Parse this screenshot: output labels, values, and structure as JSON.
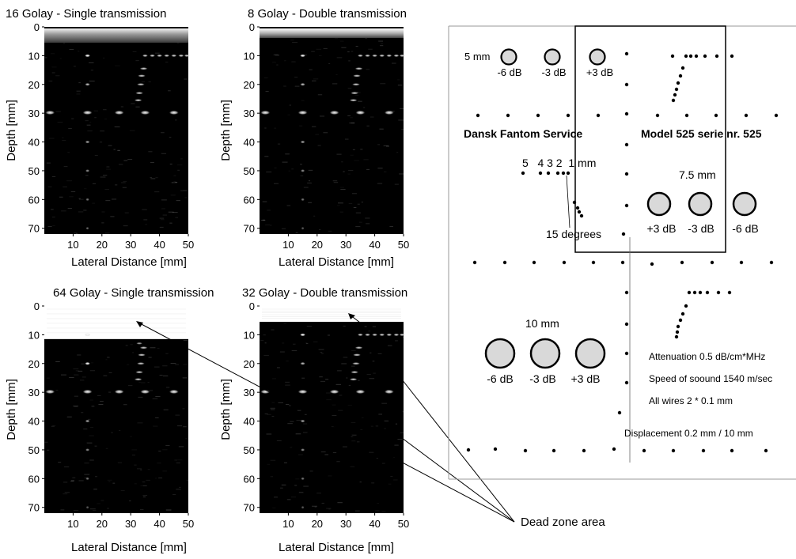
{
  "panels": [
    {
      "title": "16 Golay - Single transmission",
      "ylabel": "Depth [mm]",
      "xlabel": "Lateral Distance [mm]",
      "yticks": [
        "0",
        "10",
        "20",
        "30",
        "40",
        "50",
        "60",
        "70"
      ],
      "xticks": [
        "10",
        "20",
        "30",
        "40",
        "50"
      ]
    },
    {
      "title": "8 Golay - Double transmission",
      "ylabel": "Depth [mm]",
      "xlabel": "Lateral Distance [mm]",
      "yticks": [
        "0",
        "10",
        "20",
        "30",
        "40",
        "50",
        "60",
        "70"
      ],
      "xticks": [
        "10",
        "20",
        "30",
        "40",
        "50"
      ]
    },
    {
      "title": "64 Golay - Single transmission",
      "ylabel": "Depth [mm]",
      "xlabel": "Lateral Distance [mm]",
      "yticks": [
        "0",
        "10",
        "20",
        "30",
        "40",
        "50",
        "60",
        "70"
      ],
      "xticks": [
        "10",
        "20",
        "30",
        "40",
        "50"
      ]
    },
    {
      "title": "32 Golay - Double transmission",
      "ylabel": "Depth [mm]",
      "xlabel": "Lateral Distance [mm]",
      "yticks": [
        "0",
        "10",
        "20",
        "30",
        "40",
        "50",
        "60",
        "70"
      ],
      "xticks": [
        "10",
        "20",
        "30",
        "40",
        "50"
      ]
    }
  ],
  "phantom": {
    "label_5mm": "5 mm",
    "cyst5_labels": [
      "-6 dB",
      "-3 dB",
      "+3 dB"
    ],
    "title_left": "Dansk Fantom Service",
    "title_right": "Model 525 serie nr. 525",
    "wire_numbers": "5   4 3 2  1 mm",
    "label_75mm": "7.5 mm",
    "cyst75_labels": [
      "+3 dB",
      "-3 dB",
      "-6 dB"
    ],
    "degrees_label": "15 degrees",
    "label_10mm": "10 mm",
    "cyst10_labels": [
      "-6 dB",
      "-3 dB",
      "+3 dB"
    ],
    "attenuation": "Attenuation 0.5 dB/cm*MHz",
    "speed": "Speed of soound 1540 m/sec",
    "wires": "All wires 2 * 0.1 mm",
    "displacement": "Displacement 0.2 mm / 10 mm"
  },
  "annotation": {
    "dead_zone": "Dead zone area"
  }
}
